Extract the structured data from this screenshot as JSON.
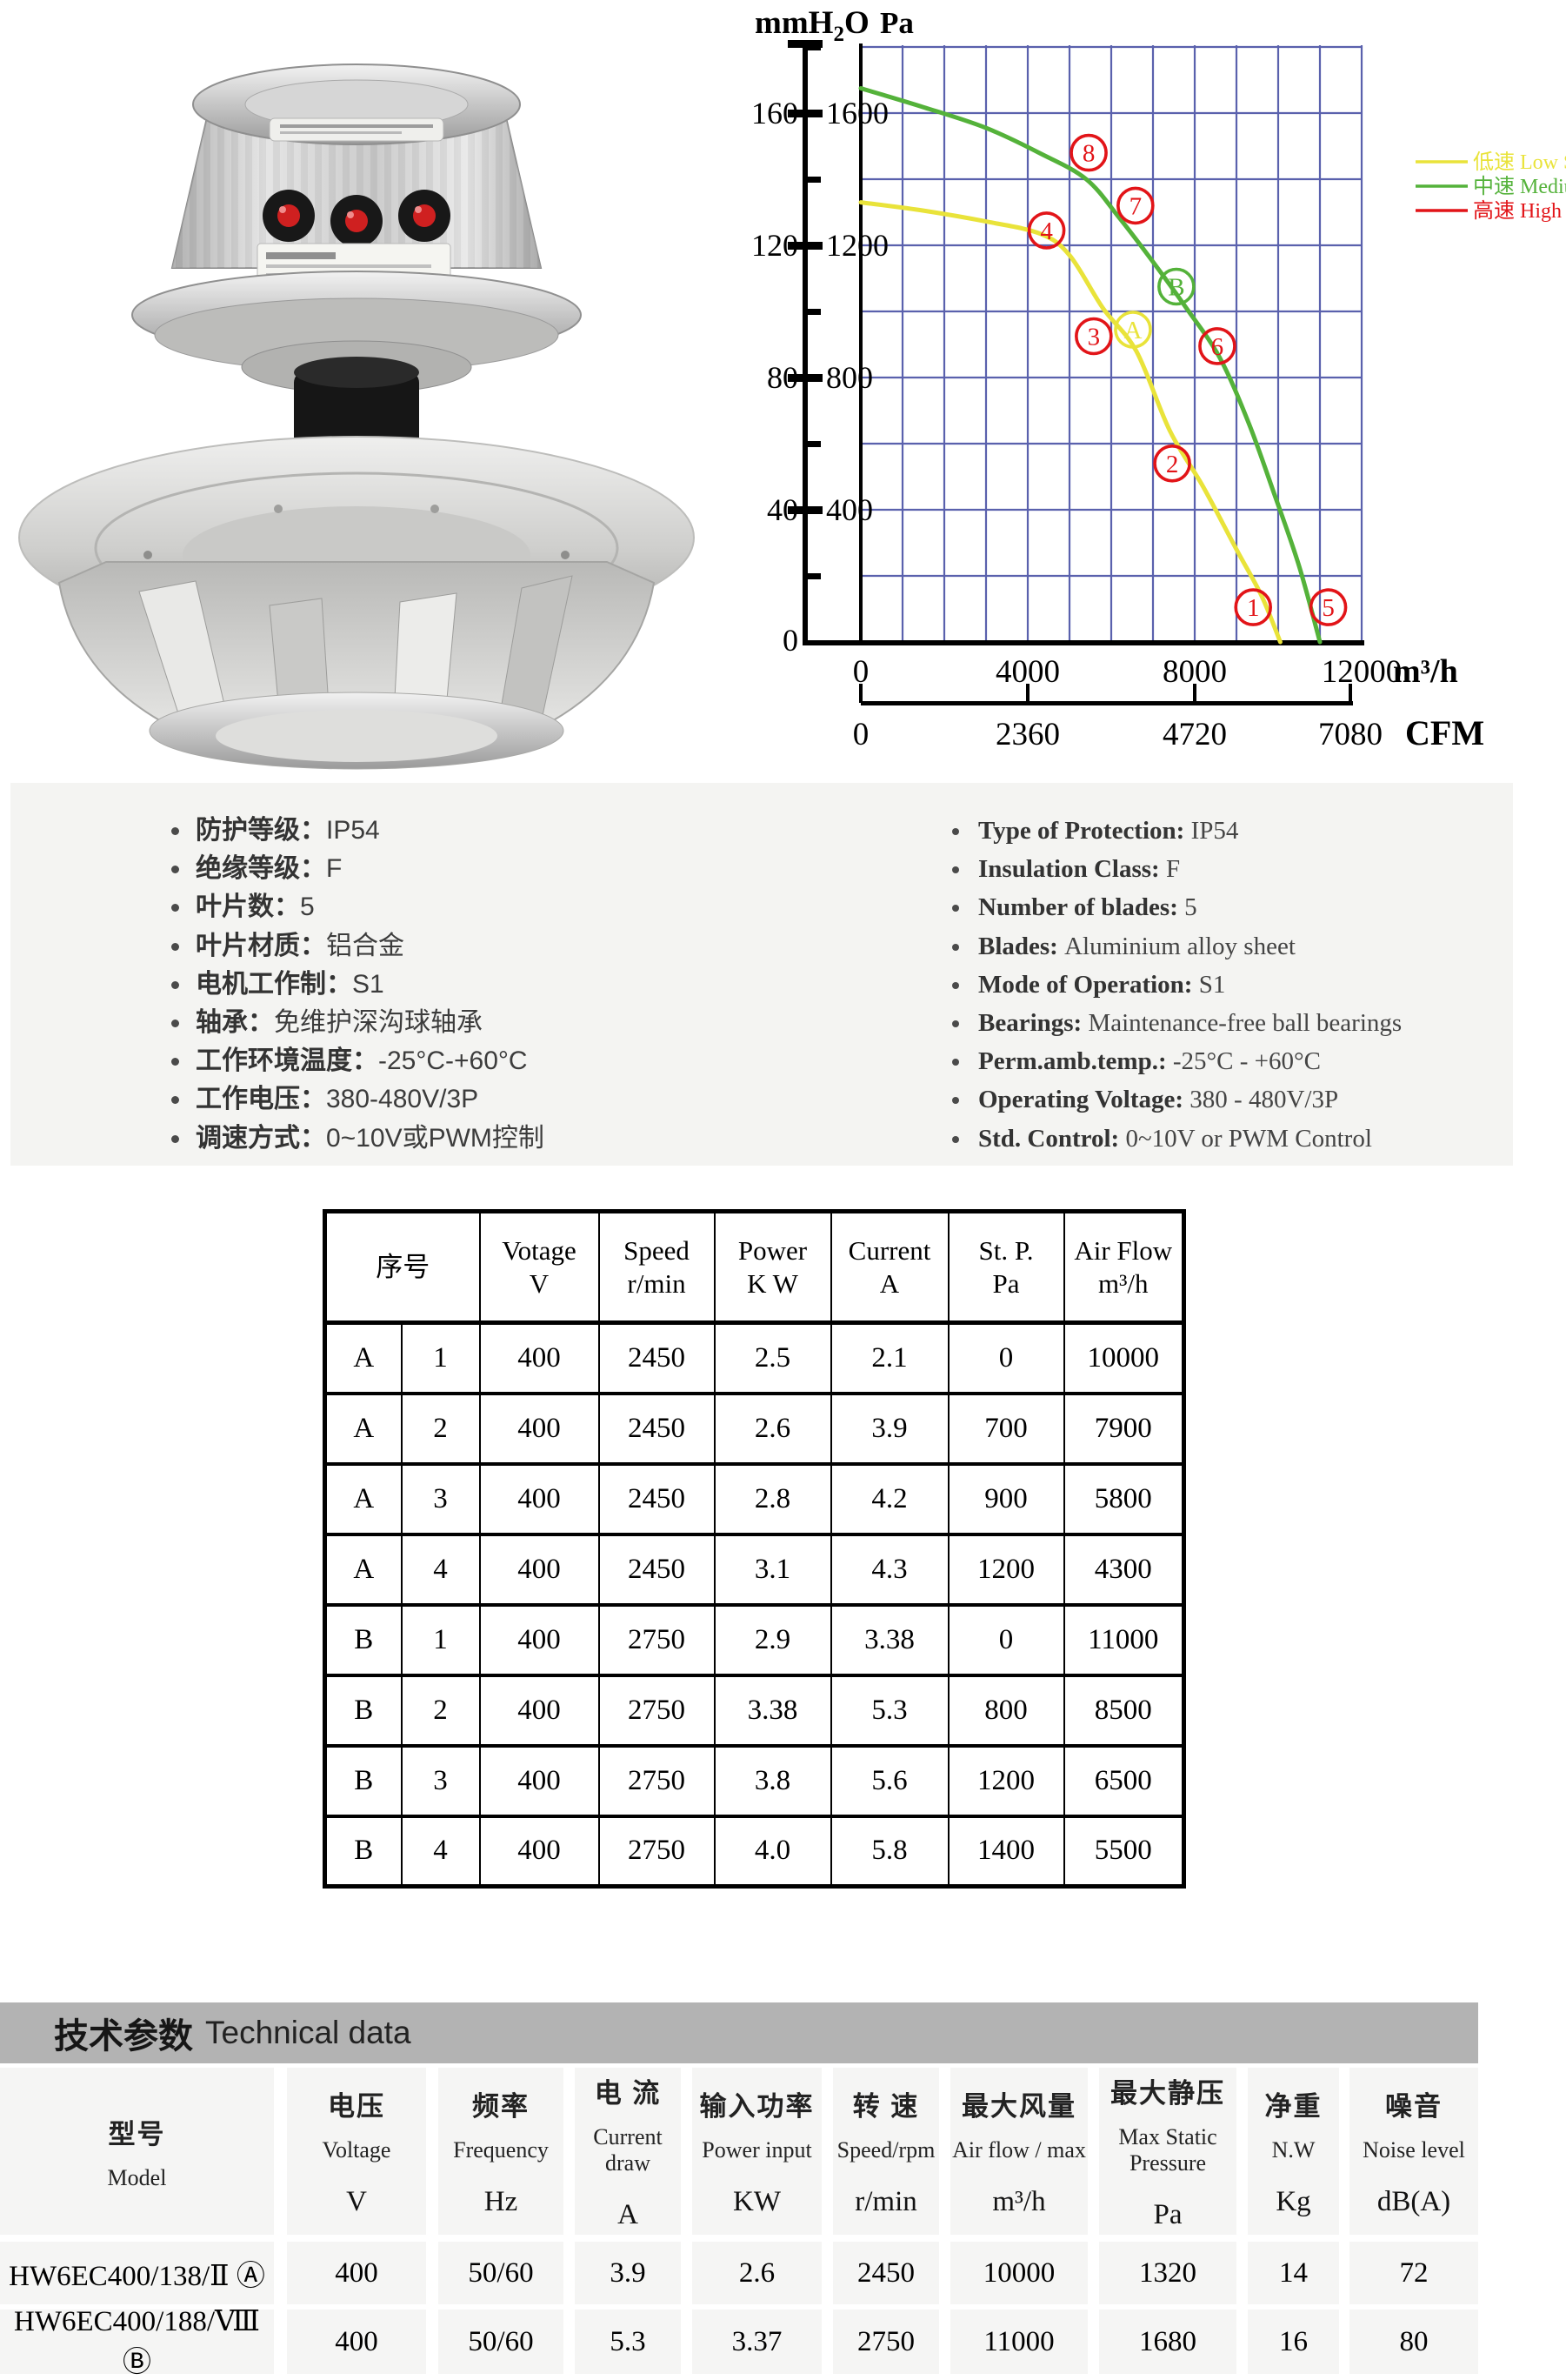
{
  "chart_data": {
    "type": "line",
    "title_units": {
      "left": "mmH2O",
      "right": "Pa"
    },
    "x_axis": {
      "label": "m³/h",
      "ticks": [
        0,
        4000,
        8000,
        12000
      ],
      "max": 12000,
      "minor_step": 1000
    },
    "x_axis2": {
      "label": "CFM",
      "ticks": [
        0,
        2360,
        4720,
        7080
      ]
    },
    "y_axis": {
      "pa_ticks": [
        400,
        800,
        1200,
        1600
      ],
      "mmh2o_ticks": [
        40,
        80,
        120,
        160
      ],
      "zero_label": "0",
      "max": 1800,
      "grid_step": 200
    },
    "colors": {
      "grid": "#5a61ad",
      "axis": "#000000",
      "low": "#e9e33a",
      "medium": "#54b23a",
      "high": "#e21418"
    },
    "legend": [
      {
        "cn": "低速",
        "en": "Low Speed",
        "color": "#e9e33a"
      },
      {
        "cn": "中速",
        "en": "Medium speed",
        "color": "#54b23a"
      },
      {
        "cn": "高速",
        "en": "High Speed",
        "color": "#e21418"
      }
    ],
    "series": [
      {
        "name": "Low Speed (curve A)",
        "color": "#e9e33a",
        "points": [
          [
            0,
            1330
          ],
          [
            1500,
            1305
          ],
          [
            3000,
            1272
          ],
          [
            4300,
            1235
          ],
          [
            5000,
            1170
          ],
          [
            5800,
            1010
          ],
          [
            6600,
            880
          ],
          [
            7400,
            640
          ],
          [
            8200,
            470
          ],
          [
            9000,
            280
          ],
          [
            9600,
            140
          ],
          [
            10050,
            0
          ]
        ]
      },
      {
        "name": "Medium speed (curve B)",
        "color": "#54b23a",
        "points": [
          [
            0,
            1675
          ],
          [
            1500,
            1618
          ],
          [
            3000,
            1555
          ],
          [
            4300,
            1478
          ],
          [
            5400,
            1400
          ],
          [
            6200,
            1282
          ],
          [
            7000,
            1150
          ],
          [
            7800,
            1010
          ],
          [
            8600,
            860
          ],
          [
            9300,
            660
          ],
          [
            9900,
            450
          ],
          [
            10500,
            230
          ],
          [
            11000,
            0
          ]
        ]
      }
    ],
    "markers": [
      {
        "label": "1",
        "x": 9400,
        "pa": 105,
        "color": "#e21418"
      },
      {
        "label": "2",
        "x": 7460,
        "pa": 540,
        "color": "#e21418"
      },
      {
        "label": "3",
        "x": 5580,
        "pa": 925,
        "color": "#e21418"
      },
      {
        "label": "4",
        "x": 4450,
        "pa": 1245,
        "color": "#e21418"
      },
      {
        "label": "5",
        "x": 11200,
        "pa": 105,
        "color": "#e21418"
      },
      {
        "label": "6",
        "x": 8540,
        "pa": 895,
        "color": "#e21418"
      },
      {
        "label": "7",
        "x": 6580,
        "pa": 1320,
        "color": "#e21418"
      },
      {
        "label": "8",
        "x": 5460,
        "pa": 1480,
        "color": "#e21418"
      },
      {
        "label": "A",
        "x": 6520,
        "pa": 945,
        "color": "#e9e33a"
      },
      {
        "label": "B",
        "x": 7560,
        "pa": 1075,
        "color": "#54b23a"
      }
    ]
  },
  "specs": {
    "cn": [
      {
        "label": "防护等级：",
        "value": "IP54"
      },
      {
        "label": "绝缘等级：",
        "value": "F"
      },
      {
        "label": "叶片数：",
        "value": "5"
      },
      {
        "label": "叶片材质：",
        "value": "铝合金"
      },
      {
        "label": "电机工作制：",
        "value": "S1"
      },
      {
        "label": "轴承：",
        "value": "免维护深沟球轴承"
      },
      {
        "label": "工作环境温度：",
        "value": "-25°C-+60°C"
      },
      {
        "label": "工作电压：",
        "value": "380-480V/3P"
      },
      {
        "label": "调速方式：",
        "value": "0~10V或PWM控制"
      }
    ],
    "en": [
      {
        "label": "Type of Protection:",
        "value": "IP54"
      },
      {
        "label": "Insulation Class:",
        "value": "F"
      },
      {
        "label": "Number of blades:",
        "value": "5"
      },
      {
        "label": "Blades:",
        "value": "Aluminium alloy sheet"
      },
      {
        "label": "Mode of Operation:",
        "value": "S1"
      },
      {
        "label": "Bearings:",
        "value": "Maintenance-free ball bearings"
      },
      {
        "label": "Perm.amb.temp.:",
        "value": "-25°C - +60°C"
      },
      {
        "label": "Operating Voltage:",
        "value": "380 - 480V/3P"
      },
      {
        "label": "Std. Control:",
        "value": "0~10V or PWM Control"
      }
    ]
  },
  "perf_table": {
    "index_header": "序号",
    "columns": [
      {
        "l1": "Votage",
        "l2": "V"
      },
      {
        "l1": "Speed",
        "l2": "r/min"
      },
      {
        "l1": "Power",
        "l2": "K W"
      },
      {
        "l1": "Current",
        "l2": "A"
      },
      {
        "l1": "St. P.",
        "l2": "Pa"
      },
      {
        "l1": "Air Flow",
        "l2": "m³/h"
      }
    ],
    "rows": [
      {
        "group": "A",
        "idx": "1",
        "vals": [
          "400",
          "2450",
          "2.5",
          "2.1",
          "0",
          "10000"
        ]
      },
      {
        "group": "A",
        "idx": "2",
        "vals": [
          "400",
          "2450",
          "2.6",
          "3.9",
          "700",
          "7900"
        ]
      },
      {
        "group": "A",
        "idx": "3",
        "vals": [
          "400",
          "2450",
          "2.8",
          "4.2",
          "900",
          "5800"
        ]
      },
      {
        "group": "A",
        "idx": "4",
        "vals": [
          "400",
          "2450",
          "3.1",
          "4.3",
          "1200",
          "4300"
        ]
      },
      {
        "group": "B",
        "idx": "1",
        "vals": [
          "400",
          "2750",
          "2.9",
          "3.38",
          "0",
          "11000"
        ]
      },
      {
        "group": "B",
        "idx": "2",
        "vals": [
          "400",
          "2750",
          "3.38",
          "5.3",
          "800",
          "8500"
        ]
      },
      {
        "group": "B",
        "idx": "3",
        "vals": [
          "400",
          "2750",
          "3.8",
          "5.6",
          "1200",
          "6500"
        ]
      },
      {
        "group": "B",
        "idx": "4",
        "vals": [
          "400",
          "2750",
          "4.0",
          "5.8",
          "1400",
          "5500"
        ]
      }
    ]
  },
  "tech_table": {
    "title_cn": "技术参数",
    "title_en": "Technical data",
    "columns": [
      {
        "cn": "型号",
        "en": "Model",
        "unit": ""
      },
      {
        "cn": "电压",
        "en": "Voltage",
        "unit": "V"
      },
      {
        "cn": "频率",
        "en": "Frequency",
        "unit": "Hz"
      },
      {
        "cn": "电 流",
        "en": "Current draw",
        "unit": "A"
      },
      {
        "cn": "输入功率",
        "en": "Power input",
        "unit": "KW"
      },
      {
        "cn": "转 速",
        "en": "Speed/rpm",
        "unit": "r/min"
      },
      {
        "cn": "最大风量",
        "en": "Air flow / max",
        "unit": "m³/h"
      },
      {
        "cn": "最大静压",
        "en": "Max Static Pressure",
        "unit": "Pa"
      },
      {
        "cn": "净重",
        "en": "N.W",
        "unit": "Kg"
      },
      {
        "cn": "噪音",
        "en": "Noise level",
        "unit": "dB(A)"
      }
    ],
    "rows": [
      {
        "model": "HW6EC400/138/Ⅱ",
        "badge": "Ⓐ",
        "vals": [
          "400",
          "50/60",
          "3.9",
          "2.6",
          "2450",
          "10000",
          "1320",
          "14",
          "72"
        ]
      },
      {
        "model": "HW6EC400/188/Ⅷ",
        "badge": "Ⓑ",
        "vals": [
          "400",
          "50/60",
          "5.3",
          "3.37",
          "2750",
          "11000",
          "1680",
          "16",
          "80"
        ]
      }
    ]
  }
}
